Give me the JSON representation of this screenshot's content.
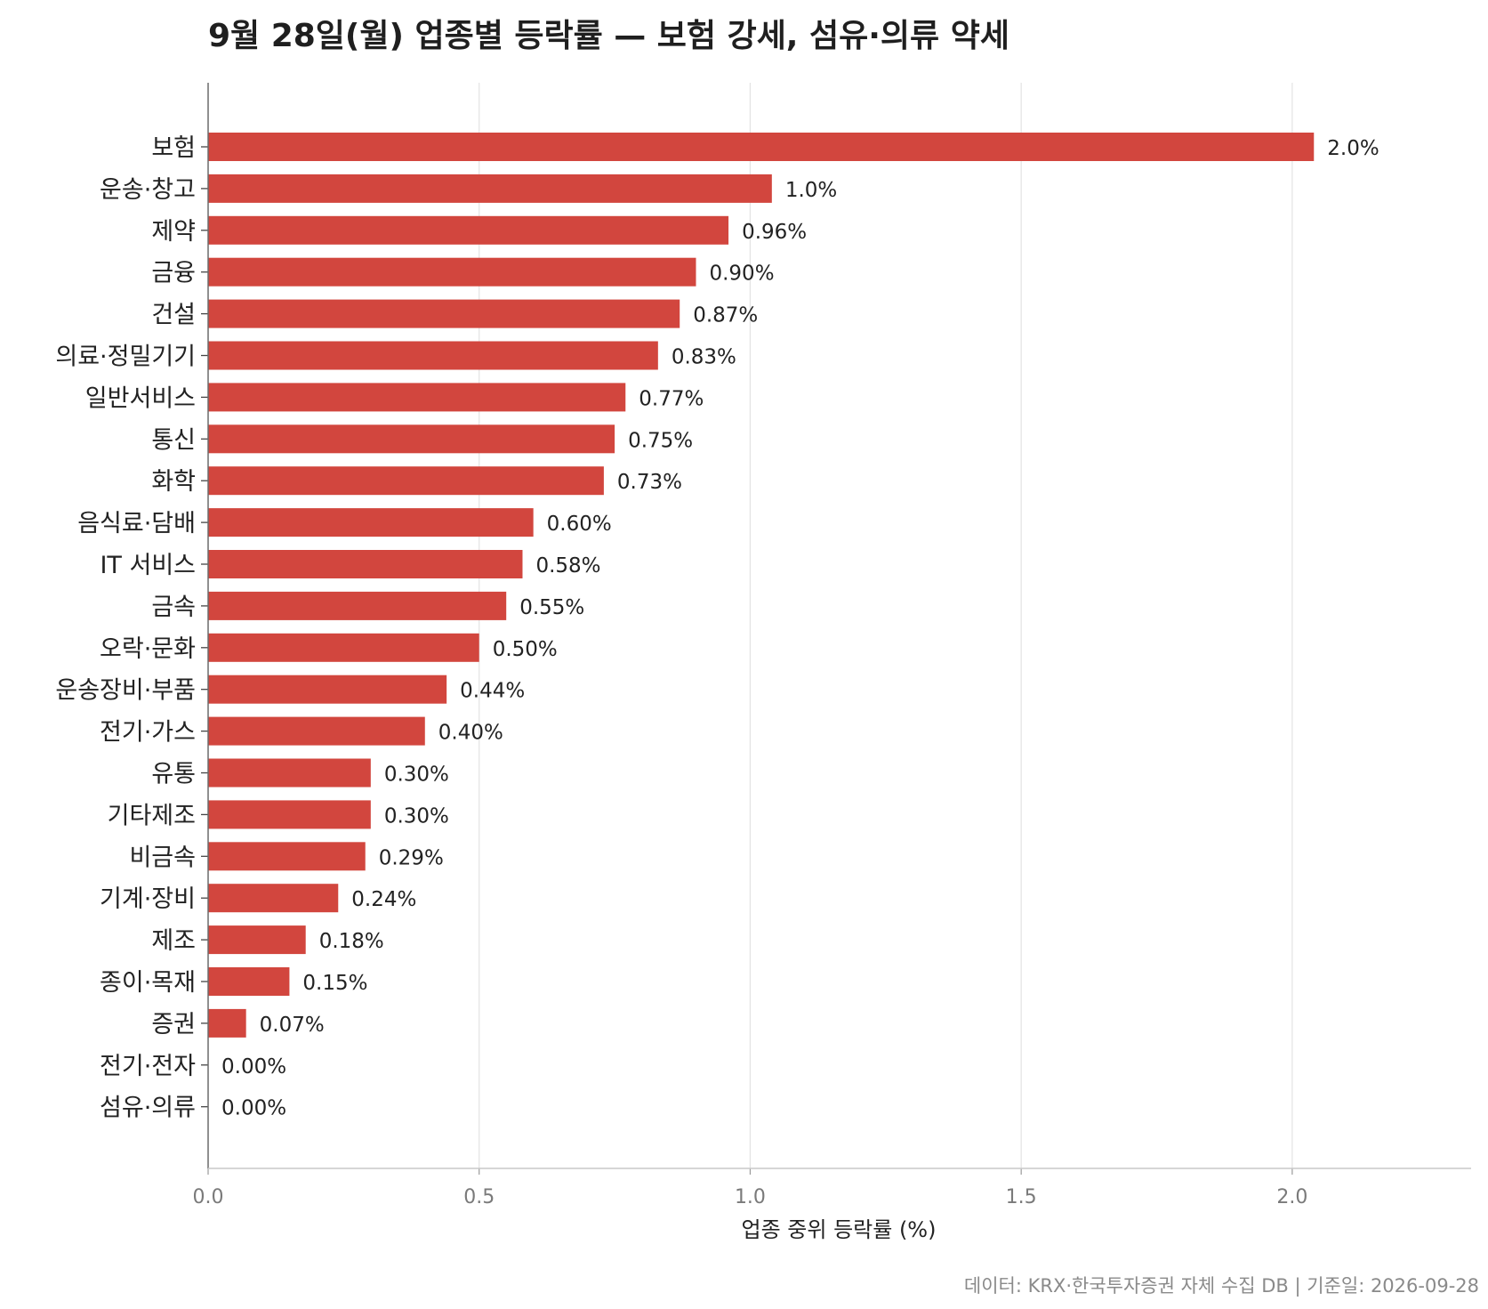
{
  "chart_data": {
    "type": "bar",
    "orientation": "horizontal",
    "title": "9월 28일(월) 업종별 등락률 — 보험 강세, 섬유·의류 약세",
    "xlabel": "업종 중위 등락률 (%)",
    "ylabel": "",
    "xlim": [
      0,
      2.33
    ],
    "xticks": [
      "0.0",
      "0.5",
      "1.0",
      "1.5",
      "2.0"
    ],
    "grid": "vertical",
    "bar_color": "#d2463e",
    "categories": [
      "보험",
      "운송·창고",
      "제약",
      "금융",
      "건설",
      "의료·정밀기기",
      "일반서비스",
      "통신",
      "화학",
      "음식료·담배",
      "IT 서비스",
      "금속",
      "오락·문화",
      "운송장비·부품",
      "전기·가스",
      "유통",
      "기타제조",
      "비금속",
      "기계·장비",
      "제조",
      "종이·목재",
      "증권",
      "전기·전자",
      "섬유·의류"
    ],
    "values": [
      2.04,
      1.04,
      0.96,
      0.9,
      0.87,
      0.83,
      0.77,
      0.75,
      0.73,
      0.6,
      0.58,
      0.55,
      0.5,
      0.44,
      0.4,
      0.3,
      0.3,
      0.29,
      0.24,
      0.18,
      0.15,
      0.07,
      0.0,
      0.0
    ],
    "value_labels": [
      "2.0%",
      "1.0%",
      "0.96%",
      "0.90%",
      "0.87%",
      "0.83%",
      "0.77%",
      "0.75%",
      "0.73%",
      "0.60%",
      "0.58%",
      "0.55%",
      "0.50%",
      "0.44%",
      "0.40%",
      "0.30%",
      "0.30%",
      "0.29%",
      "0.24%",
      "0.18%",
      "0.15%",
      "0.07%",
      "0.00%",
      "0.00%"
    ]
  },
  "source_note": "데이터: KRX·한국투자증권 자체 수집 DB  |  기준일: 2026-09-28"
}
